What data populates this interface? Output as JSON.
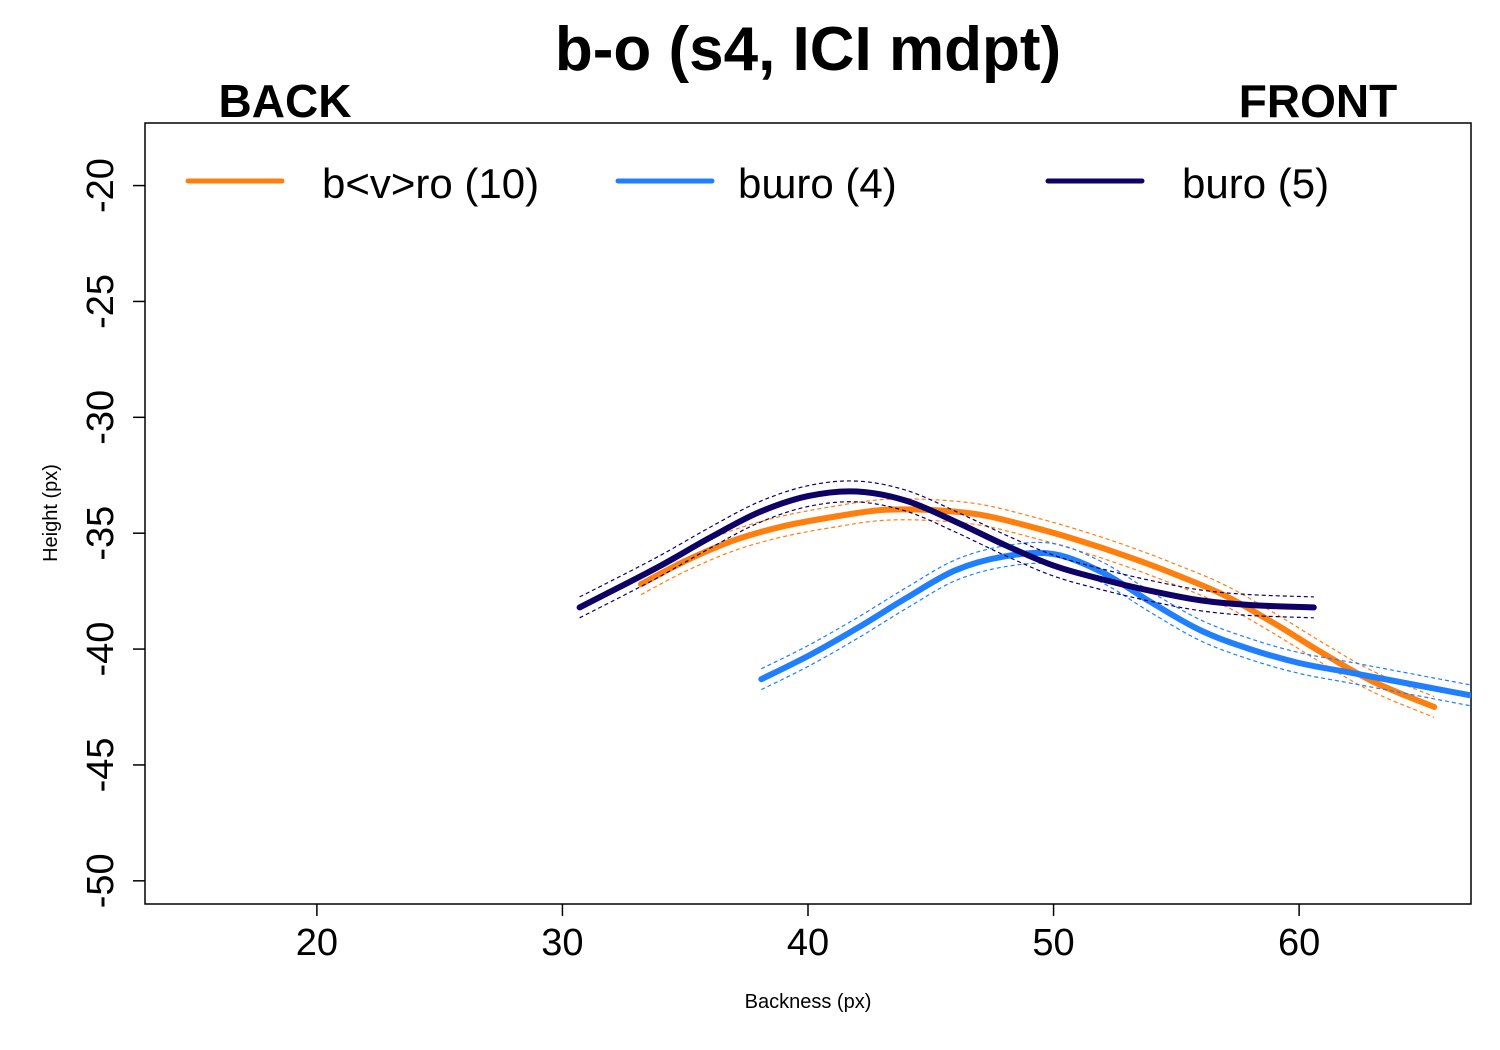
{
  "chart_data": {
    "type": "line",
    "title": "b-o (s4, ICI mdpt)",
    "corner_labels": {
      "left": "BACK",
      "right": "FRONT"
    },
    "xlabel": "Backness (px)",
    "ylabel": "Height (px)",
    "xlim": [
      13,
      67
    ],
    "ylim": [
      -51,
      -17.3
    ],
    "x_ticks": [
      "20",
      "30",
      "40",
      "50",
      "60"
    ],
    "y_ticks": [
      "-20",
      "-25",
      "-30",
      "-35",
      "-40",
      "-45",
      "-50"
    ],
    "grid": false,
    "legend_position": "top",
    "series": [
      {
        "name": "b<v>ro (10)",
        "color": "#ff7f0e",
        "points": [
          [
            33.2,
            -37.2
          ],
          [
            35,
            -36.2
          ],
          [
            37,
            -35.3
          ],
          [
            39,
            -34.7
          ],
          [
            41,
            -34.3
          ],
          [
            43,
            -34.0
          ],
          [
            45,
            -34.0
          ],
          [
            47,
            -34.2
          ],
          [
            49,
            -34.7
          ],
          [
            51,
            -35.3
          ],
          [
            53,
            -36.0
          ],
          [
            55,
            -36.8
          ],
          [
            57,
            -37.7
          ],
          [
            59,
            -38.9
          ],
          [
            61,
            -40.2
          ],
          [
            63,
            -41.4
          ],
          [
            65.5,
            -42.5
          ]
        ]
      },
      {
        "name": "bɯro (4)",
        "color": "#1f7fff",
        "points": [
          [
            38.1,
            -41.3
          ],
          [
            40,
            -40.3
          ],
          [
            42,
            -39.1
          ],
          [
            44,
            -37.8
          ],
          [
            46,
            -36.6
          ],
          [
            48,
            -36.0
          ],
          [
            50,
            -35.9
          ],
          [
            52,
            -36.7
          ],
          [
            54,
            -38.0
          ],
          [
            56,
            -39.2
          ],
          [
            58,
            -40.0
          ],
          [
            60,
            -40.6
          ],
          [
            62,
            -41.0
          ],
          [
            64,
            -41.4
          ],
          [
            66,
            -41.8
          ],
          [
            67,
            -42.0
          ]
        ]
      },
      {
        "name": "buro (5)",
        "color": "#0d0066",
        "points": [
          [
            30.7,
            -38.2
          ],
          [
            32,
            -37.5
          ],
          [
            34,
            -36.4
          ],
          [
            36,
            -35.2
          ],
          [
            38,
            -34.1
          ],
          [
            40,
            -33.4
          ],
          [
            42,
            -33.2
          ],
          [
            44,
            -33.6
          ],
          [
            46,
            -34.5
          ],
          [
            48,
            -35.5
          ],
          [
            50,
            -36.4
          ],
          [
            52,
            -37.0
          ],
          [
            54,
            -37.5
          ],
          [
            56,
            -37.9
          ],
          [
            58,
            -38.1
          ],
          [
            60.6,
            -38.2
          ]
        ]
      }
    ]
  }
}
